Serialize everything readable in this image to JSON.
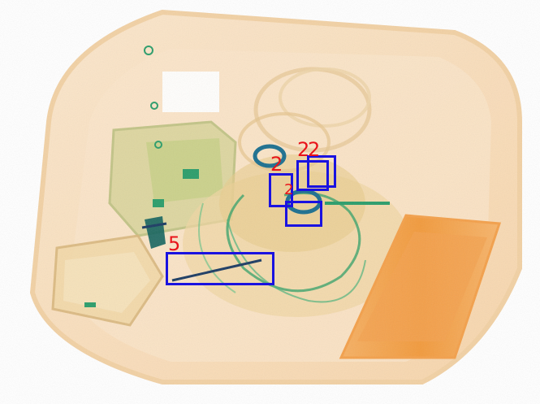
{
  "image": {
    "kind": "x-ray baggage scan",
    "palette": {
      "organic": "#f2b56b",
      "organic_dense": "#f08a2a",
      "mixed": "#c7cf86",
      "inorganic": "#2a9d6a",
      "metal": "#10605c",
      "highlight": "#8fd7e8",
      "box": "#1a12e0",
      "label": "#e8141a"
    }
  },
  "detections": [
    {
      "label": "2",
      "id": "det-a"
    },
    {
      "label": "2",
      "id": "det-b"
    },
    {
      "label": "2",
      "id": "det-c"
    },
    {
      "label": "2",
      "id": "det-d"
    },
    {
      "label": "5",
      "id": "det-e"
    }
  ]
}
